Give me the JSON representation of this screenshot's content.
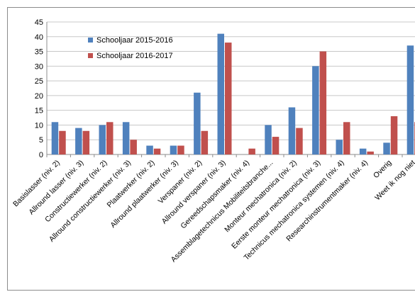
{
  "chart_data": {
    "type": "bar",
    "title": "",
    "xlabel": "",
    "ylabel": "",
    "ylim": [
      0,
      45
    ],
    "yticks": [
      0,
      5,
      10,
      15,
      20,
      25,
      30,
      35,
      40,
      45
    ],
    "grid": true,
    "legend_position": "top-left",
    "categories": [
      "Basislasser (niv. 2)",
      "Allround lasser (niv. 3)",
      "Constructiewerker (niv. 2)",
      "Allround constructiewerker (niv. 3)",
      "Plaatwerker (niv. 2)",
      "Allround plaatwerker (niv. 3)",
      "Verspaner (niv. 2)",
      "Allround verspaner (niv. 3)",
      "Gereedschapsmaker (niv. 4)",
      "Assemblagetechnicus Mobiliteitsbranche...",
      "Monteur mechatronica (niv. 2)",
      "Eerste monteur mechatronica (niv. 3)",
      "Technicus mechatronica systemen (niv. 4)",
      "Researchinstrumentmaker (niv. 4)",
      "Overig",
      "Weet ik nog niet"
    ],
    "series": [
      {
        "name": "Schooljaar 2015-2016",
        "color": "#4f81bd",
        "values": [
          11,
          9,
          10,
          11,
          3,
          3,
          21,
          41,
          0,
          10,
          16,
          30,
          5,
          2,
          4,
          37
        ]
      },
      {
        "name": "Schooljaar 2016-2017",
        "color": "#c0504d",
        "values": [
          8,
          8,
          11,
          5,
          2,
          3,
          8,
          38,
          2,
          6,
          9,
          35,
          11,
          1,
          13,
          11
        ]
      }
    ]
  }
}
